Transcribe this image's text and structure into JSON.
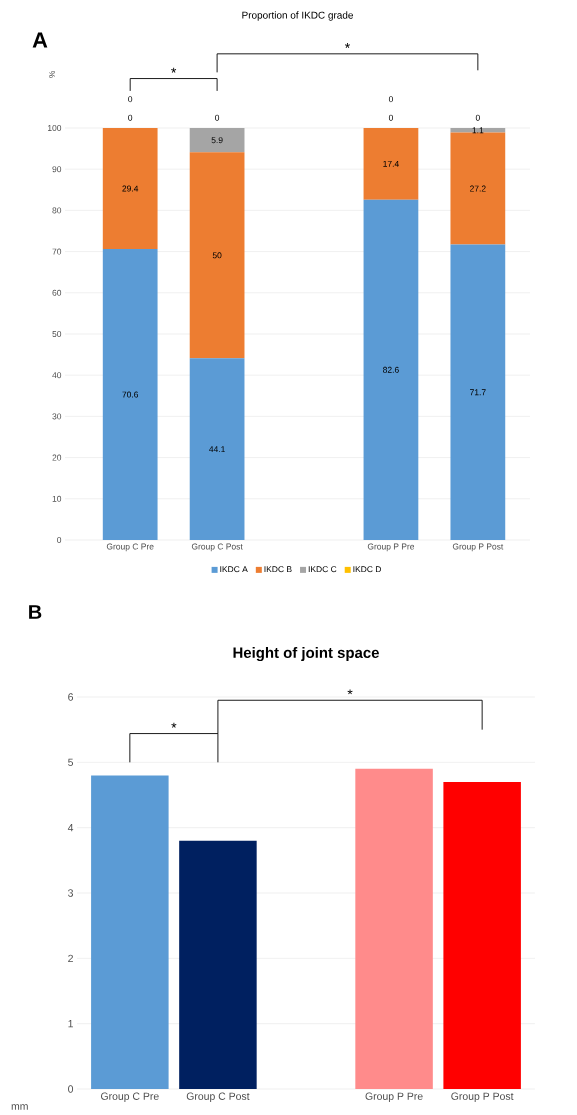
{
  "chart_data": [
    {
      "type": "bar",
      "title": "Proportion of IKDC grade",
      "ylabel": "%",
      "stacked": true,
      "categories": [
        "Group C Pre",
        "Group C Post",
        null,
        "Group P Pre",
        "Group P Post"
      ],
      "series": [
        {
          "name": "IKDC A",
          "color": "#5b9bd5",
          "values": [
            70.6,
            44.1,
            null,
            82.6,
            71.7
          ]
        },
        {
          "name": "IKDC B",
          "color": "#ed7d31",
          "values": [
            29.4,
            50,
            null,
            17.4,
            27.2
          ]
        },
        {
          "name": "IKDC C",
          "color": "#a5a5a5",
          "values": [
            0,
            5.9,
            null,
            0,
            1.1
          ]
        },
        {
          "name": "IKDC D",
          "color": "#ffc000",
          "values": [
            0,
            0,
            null,
            0,
            0
          ]
        }
      ],
      "ylim": [
        0,
        100
      ],
      "yticks": [
        0,
        10,
        20,
        30,
        40,
        50,
        60,
        70,
        80,
        90,
        100
      ],
      "grid": "y",
      "legend": "bottom",
      "data_labels": true,
      "annotations": [
        "A",
        "*",
        "*"
      ]
    },
    {
      "type": "bar",
      "title": "Height of joint space",
      "ylabel": "mm",
      "categories": [
        "Group C Pre",
        "Group C Post",
        null,
        "Group P Pre",
        "Group P Post"
      ],
      "values": [
        4.8,
        3.8,
        null,
        4.9,
        4.7
      ],
      "colors": [
        "#5b9bd5",
        "#002060",
        null,
        "#ff8b8b",
        "#ff0000"
      ],
      "ylim": [
        0,
        6
      ],
      "yticks": [
        0,
        1,
        2,
        3,
        4,
        5,
        6
      ],
      "grid": "y",
      "legend": false,
      "annotations": [
        "B",
        "*",
        "*"
      ]
    }
  ]
}
